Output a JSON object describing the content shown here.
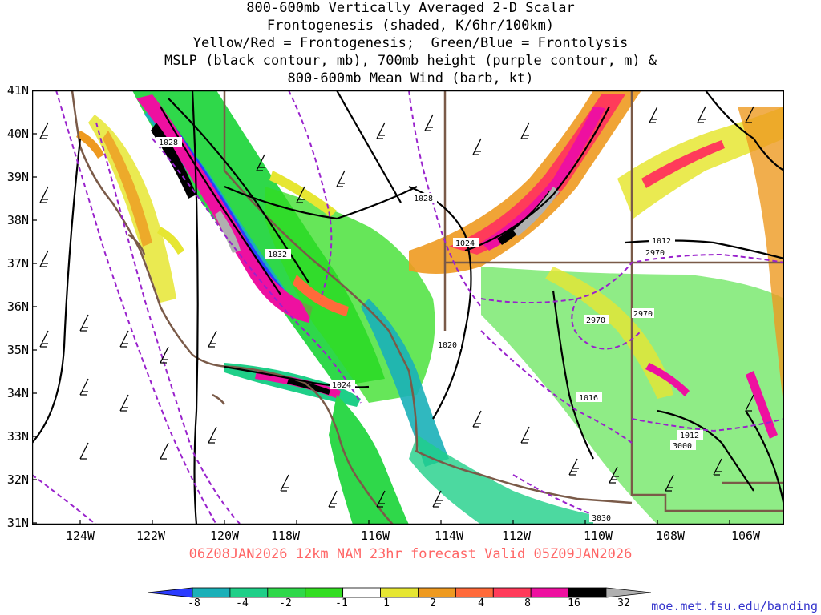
{
  "title": {
    "lines": [
      "800-600mb Vertically Averaged 2-D Scalar",
      "Frontogenesis (shaded, K/6hr/100km)",
      "Yellow/Red = Frontogenesis;  Green/Blue = Frontolysis",
      "MSLP (black contour, mb), 700mb height (purple contour, m) &",
      "800-600mb Mean Wind (barb, kt)"
    ]
  },
  "axes": {
    "lat_labels": [
      "41N",
      "40N",
      "39N",
      "38N",
      "37N",
      "36N",
      "35N",
      "34N",
      "33N",
      "32N",
      "31N"
    ],
    "lon_labels": [
      "124W",
      "122W",
      "120W",
      "118W",
      "116W",
      "114W",
      "112W",
      "110W",
      "108W",
      "106W"
    ]
  },
  "contour_labels": {
    "mslp": [
      "1028",
      "1028",
      "1032",
      "1024",
      "1020",
      "1024",
      "1016",
      "1012",
      "1012"
    ],
    "height700": [
      "2970",
      "2970",
      "2970",
      "3000",
      "3030"
    ]
  },
  "valid_line": "06Z08JAN2026 12km NAM 23hr forecast Valid 05Z09JAN2026",
  "colorbar": {
    "labels": [
      "-8",
      "-4",
      "-2",
      "-1",
      "1",
      "2",
      "4",
      "8",
      "16",
      "32"
    ],
    "colors": [
      "#2b3bff",
      "#1ab0b8",
      "#1fcf88",
      "#2fd84a",
      "#33dd22",
      "#ffffff",
      "#e6e632",
      "#ee9a20",
      "#ff6a3a",
      "#ff3b5a",
      "#ee10a0",
      "#000000",
      "#b0b0b0"
    ]
  },
  "credit": "moe.met.fsu.edu/banding"
}
